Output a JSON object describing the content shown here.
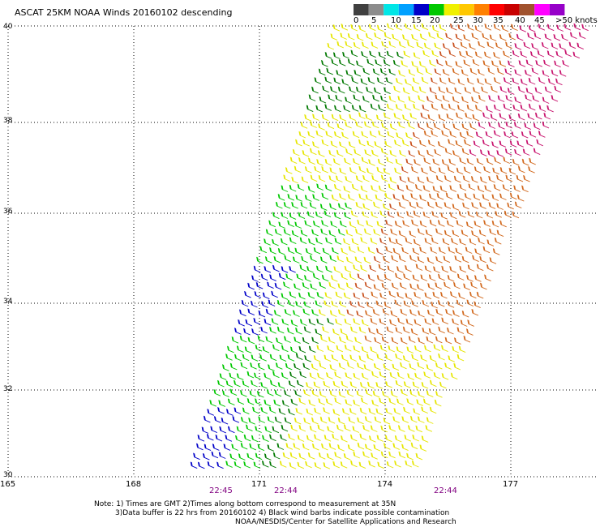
{
  "title": "ASCAT 25KM NOAA Winds 20160102 descending",
  "colorbar": {
    "colors": [
      "#404040",
      "#8c8c8c",
      "#00e6e6",
      "#00a0ff",
      "#0000c8",
      "#00c800",
      "#f0f000",
      "#ffc800",
      "#ff8000",
      "#ff0000",
      "#c80000",
      "#a0522d",
      "#ff00ff",
      "#9600c8"
    ],
    "labels": [
      "0",
      "5",
      "10",
      "15",
      "20",
      "25",
      "30",
      "35",
      "40",
      "45",
      ">50 knots"
    ]
  },
  "axes": {
    "lat_labels": [
      "40",
      "38",
      "36",
      "34",
      "32",
      "30"
    ],
    "lon_labels": [
      "165",
      "168",
      "171",
      "174",
      "177"
    ]
  },
  "times": [
    "22:45",
    "22:44",
    "22:44"
  ],
  "notes": {
    "line1": "Note: 1) Times are GMT 2)Times along bottom correspond to measurement at 35N",
    "line2": "3)Data buffer is 22 hrs from 20160102 4) Black wind barbs indicate possible contamination",
    "line3": "NOAA/NESDIS/Center for Satellite Applications and Research"
  },
  "wind_colors": {
    "blue": "#0000c8",
    "green": "#00c800",
    "darkgreen": "#007800",
    "yellow": "#e6e600",
    "orange": "#d2691e",
    "red": "#c8501e",
    "magenta": "#c8146e"
  }
}
